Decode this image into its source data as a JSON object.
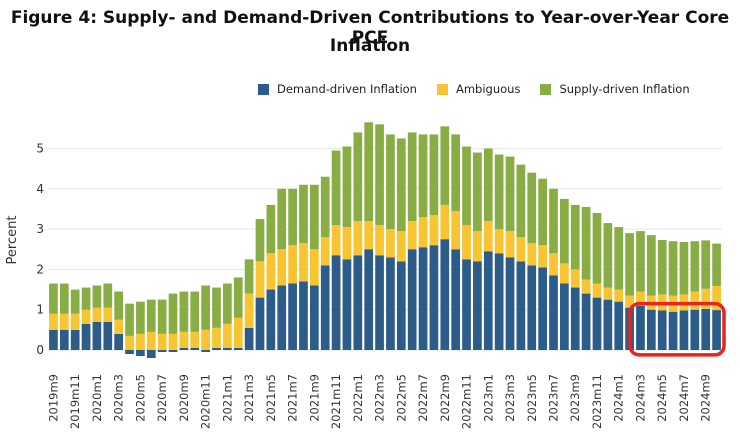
{
  "title_line1": "Figure 4: Supply- and Demand-Driven Contributions to Year-over-Year Core PCE",
  "title_line2": "Inflation",
  "chart_data": {
    "type": "bar",
    "stacked": true,
    "ylabel": "Percent",
    "ylim": [
      -0.3,
      5.7
    ],
    "yticks": [
      0,
      1,
      2,
      3,
      4,
      5
    ],
    "grid": true,
    "legend_position": "top-right",
    "categories": [
      "2019m9",
      "2019m10",
      "2019m11",
      "2019m12",
      "2020m1",
      "2020m2",
      "2020m3",
      "2020m4",
      "2020m5",
      "2020m6",
      "2020m7",
      "2020m8",
      "2020m9",
      "2020m10",
      "2020m11",
      "2020m12",
      "2021m1",
      "2021m2",
      "2021m3",
      "2021m4",
      "2021m5",
      "2021m6",
      "2021m7",
      "2021m8",
      "2021m9",
      "2021m10",
      "2021m11",
      "2021m12",
      "2022m1",
      "2022m2",
      "2022m3",
      "2022m4",
      "2022m5",
      "2022m6",
      "2022m7",
      "2022m8",
      "2022m9",
      "2022m10",
      "2022m11",
      "2022m12",
      "2023m1",
      "2023m2",
      "2023m3",
      "2023m4",
      "2023m5",
      "2023m6",
      "2023m7",
      "2023m8",
      "2023m9",
      "2023m10",
      "2023m11",
      "2023m12",
      "2024m1",
      "2024m2",
      "2024m3",
      "2024m4",
      "2024m5",
      "2024m6",
      "2024m7",
      "2024m8",
      "2024m9",
      "2024m10"
    ],
    "tick_labels": [
      "2019m9",
      "2019m11",
      "2020m1",
      "2020m3",
      "2020m5",
      "2020m7",
      "2020m9",
      "2020m11",
      "2021m1",
      "2021m3",
      "2021m5",
      "2021m7",
      "2021m9",
      "2021m11",
      "2022m1",
      "2022m3",
      "2022m5",
      "2022m7",
      "2022m9",
      "2022m11",
      "2023m1",
      "2023m3",
      "2023m5",
      "2023m7",
      "2023m9",
      "2023m11",
      "2024m1",
      "2024m3",
      "2024m5",
      "2024m7",
      "2024m9"
    ],
    "series": [
      {
        "name": "Demand-driven Inflation",
        "color": "#2b5c8a",
        "values": [
          0.5,
          0.5,
          0.5,
          0.65,
          0.7,
          0.7,
          0.4,
          -0.1,
          -0.15,
          -0.2,
          -0.05,
          -0.05,
          0.05,
          0.05,
          -0.05,
          0.05,
          0.05,
          0.05,
          0.55,
          1.3,
          1.5,
          1.6,
          1.65,
          1.7,
          1.6,
          2.1,
          2.35,
          2.25,
          2.35,
          2.5,
          2.35,
          2.3,
          2.2,
          2.5,
          2.55,
          2.6,
          2.75,
          2.5,
          2.25,
          2.2,
          2.45,
          2.4,
          2.3,
          2.2,
          2.1,
          2.05,
          1.85,
          1.65,
          1.55,
          1.4,
          1.3,
          1.25,
          1.2,
          1.05,
          1.1,
          1.0,
          0.98,
          0.95,
          0.98,
          1.0,
          1.02,
          0.99
        ]
      },
      {
        "name": "Ambiguous",
        "color": "#f8c431",
        "values": [
          0.4,
          0.4,
          0.4,
          0.35,
          0.35,
          0.35,
          0.35,
          0.35,
          0.4,
          0.45,
          0.4,
          0.4,
          0.4,
          0.4,
          0.5,
          0.5,
          0.6,
          0.75,
          0.85,
          0.9,
          0.9,
          0.9,
          0.95,
          0.95,
          0.9,
          0.7,
          0.75,
          0.8,
          0.85,
          0.7,
          0.75,
          0.7,
          0.75,
          0.7,
          0.75,
          0.75,
          0.85,
          0.95,
          0.85,
          0.75,
          0.75,
          0.6,
          0.65,
          0.6,
          0.55,
          0.55,
          0.55,
          0.5,
          0.45,
          0.35,
          0.35,
          0.3,
          0.3,
          0.3,
          0.35,
          0.35,
          0.4,
          0.4,
          0.4,
          0.45,
          0.5,
          0.6
        ]
      },
      {
        "name": "Supply-driven Inflation",
        "color": "#88ad45",
        "values": [
          0.75,
          0.75,
          0.6,
          0.55,
          0.55,
          0.6,
          0.7,
          0.8,
          0.8,
          0.8,
          0.85,
          1.0,
          1.0,
          1.0,
          1.1,
          1.0,
          1.0,
          1.0,
          0.85,
          1.05,
          1.2,
          1.5,
          1.4,
          1.45,
          1.6,
          1.5,
          1.85,
          2.0,
          2.2,
          2.45,
          2.5,
          2.35,
          2.3,
          2.2,
          2.05,
          2.0,
          1.95,
          1.9,
          1.95,
          1.95,
          1.8,
          1.85,
          1.85,
          1.8,
          1.75,
          1.65,
          1.6,
          1.6,
          1.6,
          1.8,
          1.75,
          1.6,
          1.55,
          1.55,
          1.5,
          1.5,
          1.35,
          1.35,
          1.3,
          1.25,
          1.2,
          1.05
        ]
      }
    ],
    "highlight": {
      "from": "2024m3",
      "to": "2024m10",
      "color": "#e8241c"
    }
  }
}
